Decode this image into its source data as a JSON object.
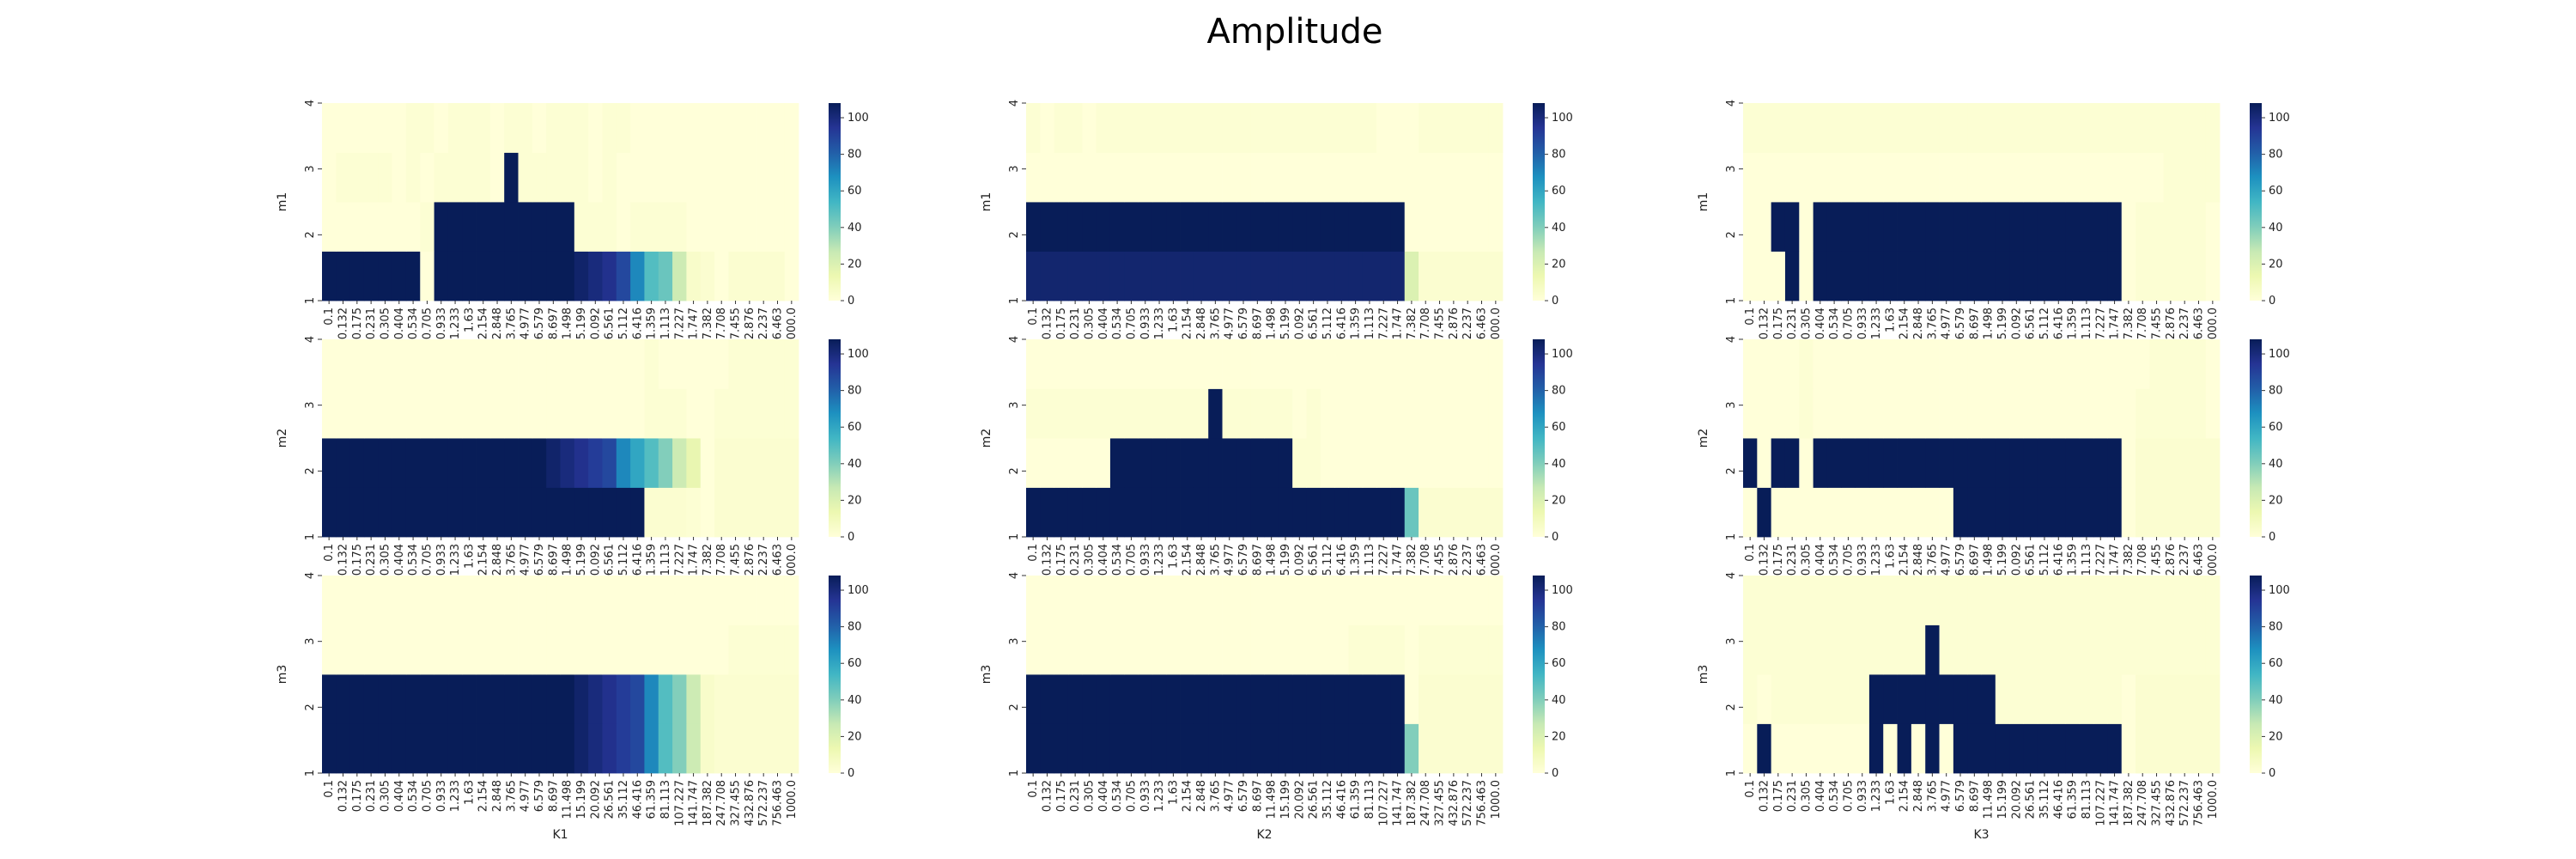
{
  "figure": {
    "title": "Amplitude"
  },
  "colorbar": {
    "ticks": [
      "0",
      "20",
      "40",
      "60",
      "80",
      "100"
    ],
    "vmin": 0,
    "vmax": 108,
    "colormap": [
      "#ffffd9",
      "#edf8b1",
      "#c7e9b4",
      "#7fcdbb",
      "#41b6c4",
      "#1d91c0",
      "#225ea8",
      "#253494",
      "#081d58"
    ]
  },
  "x_tick_labels": [
    "0.1",
    "0.132",
    "0.175",
    "0.231",
    "0.305",
    "0.404",
    "0.534",
    "0.705",
    "0.933",
    "1.233",
    "1.63",
    "2.154",
    "2.848",
    "3.765",
    "4.977",
    "6.579",
    "8.697",
    "11.498",
    "15.199",
    "20.092",
    "26.561",
    "35.112",
    "46.416",
    "61.359",
    "81.113",
    "107.227",
    "141.747",
    "187.382",
    "247.708",
    "327.455",
    "432.876",
    "572.237",
    "756.463",
    "1000.0"
  ],
  "y_tick_labels": [
    "1",
    "2",
    "3",
    "4"
  ],
  "chart_data": [
    {
      "type": "heatmap",
      "xlabel": "",
      "ylabel": "m1",
      "rows": [
        [
          108,
          108,
          108,
          108,
          108,
          108,
          108,
          0,
          108,
          108,
          108,
          108,
          108,
          108,
          108,
          108,
          108,
          108,
          104,
          100,
          96,
          88,
          70,
          50,
          45,
          25,
          5,
          3,
          0,
          3,
          3,
          3,
          3,
          0
        ],
        [
          0,
          0,
          0,
          0,
          0,
          0,
          0,
          2,
          108,
          108,
          108,
          108,
          108,
          108,
          108,
          108,
          108,
          108,
          2,
          2,
          2,
          0,
          2,
          2,
          2,
          2,
          0,
          0,
          0,
          0,
          0,
          0,
          0,
          0
        ],
        [
          0,
          2,
          2,
          2,
          2,
          0,
          2,
          0,
          2,
          2,
          2,
          2,
          0,
          108,
          2,
          2,
          2,
          2,
          2,
          0,
          2,
          0,
          0,
          0,
          0,
          0,
          0,
          0,
          0,
          0,
          0,
          0,
          0,
          0
        ],
        [
          0,
          0,
          0,
          0,
          0,
          0,
          2,
          2,
          0,
          2,
          2,
          2,
          0,
          2,
          2,
          0,
          2,
          2,
          2,
          0,
          2,
          2,
          0,
          0,
          0,
          0,
          0,
          0,
          0,
          0,
          0,
          0,
          0,
          0
        ]
      ]
    },
    {
      "type": "heatmap",
      "xlabel": "",
      "ylabel": "m1",
      "rows": [
        [
          103,
          103,
          103,
          103,
          103,
          103,
          103,
          103,
          103,
          103,
          103,
          103,
          103,
          103,
          103,
          103,
          103,
          103,
          103,
          103,
          103,
          103,
          103,
          103,
          103,
          103,
          103,
          20,
          3,
          3,
          3,
          3,
          3,
          3
        ],
        [
          108,
          108,
          108,
          108,
          108,
          108,
          108,
          108,
          108,
          108,
          108,
          108,
          108,
          108,
          108,
          108,
          108,
          108,
          108,
          108,
          108,
          108,
          108,
          108,
          108,
          108,
          108,
          0,
          0,
          0,
          0,
          0,
          0,
          0
        ],
        [
          0,
          0,
          0,
          0,
          0,
          0,
          0,
          0,
          0,
          0,
          0,
          0,
          0,
          0,
          0,
          0,
          0,
          0,
          0,
          0,
          0,
          0,
          0,
          0,
          0,
          0,
          0,
          0,
          0,
          0,
          0,
          0,
          0,
          0
        ],
        [
          2,
          0,
          2,
          2,
          0,
          2,
          2,
          2,
          2,
          2,
          2,
          2,
          2,
          2,
          2,
          2,
          2,
          2,
          2,
          2,
          2,
          2,
          2,
          2,
          2,
          0,
          0,
          0,
          2,
          2,
          2,
          2,
          2,
          2
        ]
      ]
    },
    {
      "type": "heatmap",
      "xlabel": "",
      "ylabel": "m1",
      "rows": [
        [
          0,
          0,
          0,
          108,
          0,
          108,
          108,
          108,
          108,
          108,
          108,
          108,
          108,
          108,
          108,
          108,
          108,
          108,
          108,
          108,
          108,
          108,
          108,
          108,
          108,
          108,
          108,
          0,
          2,
          2,
          2,
          2,
          2,
          0
        ],
        [
          0,
          0,
          108,
          108,
          0,
          108,
          108,
          108,
          108,
          108,
          108,
          108,
          108,
          108,
          108,
          108,
          108,
          108,
          108,
          108,
          108,
          108,
          108,
          108,
          108,
          108,
          108,
          0,
          2,
          2,
          2,
          2,
          2,
          0
        ],
        [
          0,
          0,
          0,
          0,
          0,
          0,
          0,
          0,
          0,
          0,
          0,
          0,
          0,
          0,
          0,
          0,
          0,
          0,
          0,
          0,
          0,
          0,
          0,
          0,
          0,
          0,
          0,
          0,
          0,
          0,
          2,
          2,
          2,
          2
        ],
        [
          2,
          2,
          2,
          2,
          2,
          2,
          2,
          2,
          2,
          2,
          2,
          2,
          2,
          2,
          2,
          2,
          2,
          2,
          2,
          2,
          2,
          2,
          2,
          2,
          2,
          2,
          2,
          2,
          2,
          2,
          2,
          2,
          2,
          2
        ]
      ]
    },
    {
      "type": "heatmap",
      "xlabel": "",
      "ylabel": "m2",
      "rows": [
        [
          108,
          108,
          108,
          108,
          108,
          108,
          108,
          108,
          108,
          108,
          108,
          108,
          108,
          108,
          108,
          108,
          108,
          108,
          108,
          108,
          108,
          108,
          108,
          3,
          3,
          3,
          2,
          0,
          3,
          3,
          3,
          3,
          3,
          3
        ],
        [
          108,
          108,
          108,
          108,
          108,
          108,
          108,
          108,
          108,
          108,
          108,
          108,
          108,
          108,
          108,
          108,
          104,
          100,
          96,
          92,
          88,
          70,
          60,
          50,
          40,
          25,
          15,
          0,
          3,
          3,
          3,
          3,
          3,
          3
        ],
        [
          0,
          0,
          0,
          0,
          0,
          0,
          0,
          0,
          0,
          0,
          0,
          0,
          0,
          0,
          0,
          0,
          0,
          0,
          0,
          0,
          0,
          0,
          0,
          2,
          2,
          2,
          0,
          0,
          2,
          2,
          2,
          2,
          2,
          2
        ],
        [
          0,
          0,
          0,
          0,
          0,
          0,
          0,
          0,
          0,
          0,
          0,
          0,
          0,
          0,
          0,
          0,
          0,
          0,
          0,
          0,
          0,
          0,
          0,
          2,
          0,
          0,
          0,
          0,
          0,
          2,
          2,
          2,
          2,
          2
        ]
      ]
    },
    {
      "type": "heatmap",
      "xlabel": "",
      "ylabel": "m2",
      "rows": [
        [
          108,
          108,
          108,
          108,
          108,
          108,
          108,
          108,
          108,
          108,
          108,
          108,
          108,
          108,
          108,
          108,
          108,
          108,
          108,
          108,
          108,
          108,
          108,
          108,
          108,
          108,
          108,
          45,
          3,
          3,
          3,
          3,
          3,
          3
        ],
        [
          0,
          0,
          0,
          0,
          0,
          0,
          108,
          108,
          108,
          108,
          108,
          108,
          108,
          108,
          108,
          108,
          108,
          108,
          108,
          2,
          2,
          0,
          0,
          0,
          0,
          0,
          0,
          0,
          0,
          0,
          0,
          0,
          0,
          0
        ],
        [
          2,
          2,
          2,
          2,
          2,
          2,
          2,
          2,
          2,
          2,
          2,
          2,
          2,
          108,
          2,
          2,
          2,
          2,
          2,
          0,
          2,
          0,
          0,
          0,
          0,
          0,
          0,
          0,
          0,
          0,
          0,
          0,
          0,
          0
        ],
        [
          0,
          0,
          0,
          0,
          0,
          0,
          0,
          0,
          0,
          0,
          0,
          0,
          0,
          0,
          0,
          0,
          0,
          0,
          0,
          0,
          0,
          0,
          0,
          0,
          0,
          0,
          0,
          0,
          0,
          0,
          0,
          0,
          0,
          0
        ]
      ]
    },
    {
      "type": "heatmap",
      "xlabel": "",
      "ylabel": "m2",
      "rows": [
        [
          0,
          108,
          0,
          0,
          0,
          0,
          0,
          0,
          0,
          0,
          0,
          0,
          0,
          0,
          0,
          108,
          108,
          108,
          108,
          108,
          108,
          108,
          108,
          108,
          108,
          108,
          108,
          0,
          3,
          3,
          3,
          3,
          3,
          3
        ],
        [
          108,
          0,
          108,
          108,
          0,
          108,
          108,
          108,
          108,
          108,
          108,
          108,
          108,
          108,
          108,
          108,
          108,
          108,
          108,
          108,
          108,
          108,
          108,
          108,
          108,
          108,
          108,
          0,
          3,
          3,
          3,
          3,
          3,
          3
        ],
        [
          0,
          0,
          0,
          0,
          2,
          0,
          0,
          0,
          0,
          0,
          0,
          0,
          0,
          0,
          0,
          0,
          0,
          0,
          0,
          0,
          0,
          0,
          0,
          0,
          0,
          0,
          0,
          0,
          2,
          2,
          2,
          2,
          2,
          0
        ],
        [
          0,
          0,
          0,
          0,
          2,
          0,
          0,
          0,
          0,
          0,
          0,
          0,
          0,
          0,
          0,
          0,
          0,
          0,
          0,
          0,
          0,
          0,
          0,
          0,
          0,
          0,
          0,
          0,
          0,
          2,
          2,
          2,
          2,
          0
        ]
      ]
    },
    {
      "type": "heatmap",
      "xlabel": "K1",
      "ylabel": "m3",
      "rows": [
        [
          108,
          108,
          108,
          108,
          108,
          108,
          108,
          108,
          108,
          108,
          108,
          108,
          108,
          108,
          108,
          108,
          108,
          108,
          104,
          100,
          96,
          92,
          88,
          70,
          50,
          40,
          25,
          5,
          3,
          3,
          3,
          3,
          3,
          3
        ],
        [
          108,
          108,
          108,
          108,
          108,
          108,
          108,
          108,
          108,
          108,
          108,
          108,
          108,
          108,
          108,
          108,
          108,
          108,
          104,
          100,
          96,
          92,
          88,
          70,
          50,
          40,
          25,
          5,
          3,
          3,
          3,
          3,
          3,
          3
        ],
        [
          0,
          0,
          0,
          0,
          0,
          0,
          0,
          0,
          0,
          0,
          0,
          0,
          0,
          0,
          0,
          0,
          0,
          0,
          0,
          0,
          0,
          0,
          0,
          0,
          0,
          0,
          0,
          0,
          0,
          2,
          2,
          2,
          2,
          2
        ],
        [
          0,
          0,
          0,
          0,
          0,
          0,
          0,
          0,
          0,
          0,
          0,
          0,
          0,
          0,
          0,
          0,
          0,
          0,
          0,
          0,
          0,
          0,
          0,
          0,
          0,
          0,
          0,
          0,
          0,
          0,
          0,
          0,
          0,
          0
        ]
      ]
    },
    {
      "type": "heatmap",
      "xlabel": "K2",
      "ylabel": "m3",
      "rows": [
        [
          108,
          108,
          108,
          108,
          108,
          108,
          108,
          108,
          108,
          108,
          108,
          108,
          108,
          108,
          108,
          108,
          108,
          108,
          108,
          108,
          108,
          108,
          108,
          108,
          108,
          108,
          108,
          40,
          3,
          3,
          3,
          3,
          3,
          3
        ],
        [
          108,
          108,
          108,
          108,
          108,
          108,
          108,
          108,
          108,
          108,
          108,
          108,
          108,
          108,
          108,
          108,
          108,
          108,
          108,
          108,
          108,
          108,
          108,
          108,
          108,
          108,
          108,
          0,
          3,
          3,
          3,
          3,
          3,
          3
        ],
        [
          0,
          0,
          0,
          0,
          0,
          0,
          0,
          0,
          0,
          0,
          0,
          0,
          0,
          0,
          0,
          0,
          0,
          0,
          0,
          0,
          0,
          0,
          0,
          2,
          2,
          2,
          2,
          0,
          2,
          2,
          2,
          2,
          2,
          2
        ],
        [
          0,
          0,
          0,
          0,
          0,
          0,
          0,
          0,
          0,
          0,
          0,
          0,
          0,
          0,
          0,
          0,
          0,
          0,
          0,
          0,
          0,
          0,
          0,
          0,
          0,
          0,
          0,
          0,
          0,
          0,
          0,
          0,
          0,
          0
        ]
      ]
    },
    {
      "type": "heatmap",
      "xlabel": "K3",
      "ylabel": "m3",
      "rows": [
        [
          0,
          108,
          0,
          0,
          0,
          0,
          0,
          0,
          0,
          108,
          0,
          108,
          0,
          108,
          0,
          108,
          108,
          108,
          108,
          108,
          108,
          108,
          108,
          108,
          108,
          108,
          108,
          0,
          3,
          3,
          3,
          3,
          3,
          3
        ],
        [
          2,
          0,
          2,
          2,
          2,
          2,
          2,
          2,
          2,
          108,
          108,
          108,
          108,
          108,
          108,
          108,
          108,
          108,
          2,
          2,
          2,
          2,
          2,
          2,
          2,
          2,
          2,
          0,
          3,
          3,
          3,
          3,
          3,
          3
        ],
        [
          2,
          2,
          2,
          2,
          2,
          2,
          2,
          2,
          2,
          2,
          2,
          2,
          2,
          108,
          2,
          2,
          2,
          2,
          2,
          2,
          2,
          2,
          2,
          2,
          2,
          2,
          2,
          2,
          2,
          2,
          2,
          2,
          2,
          2
        ],
        [
          2,
          2,
          2,
          2,
          2,
          2,
          2,
          2,
          2,
          2,
          2,
          2,
          2,
          2,
          2,
          2,
          2,
          2,
          2,
          2,
          2,
          2,
          2,
          2,
          2,
          2,
          2,
          2,
          2,
          2,
          2,
          2,
          2,
          2
        ]
      ]
    }
  ]
}
